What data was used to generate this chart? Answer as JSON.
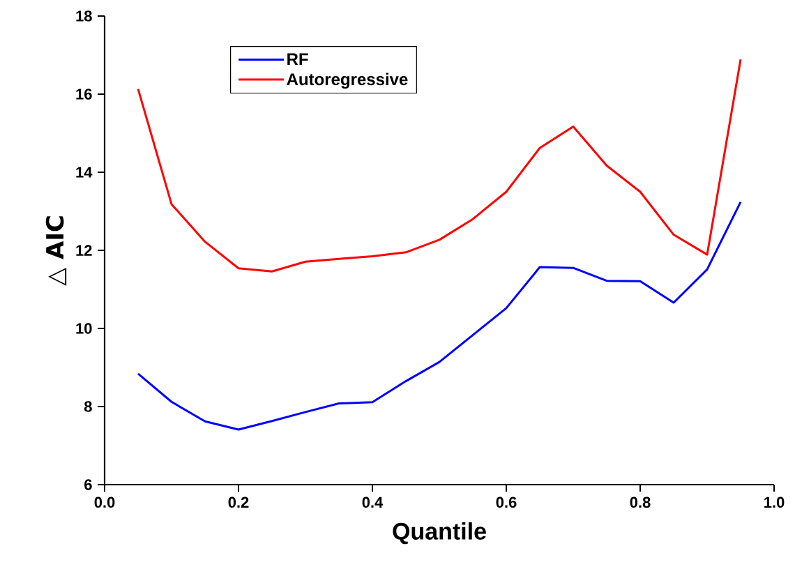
{
  "chart_data": {
    "type": "line",
    "xlabel": "Quantile",
    "ylabel": "△ AIC",
    "x": [
      0.05,
      0.1,
      0.15,
      0.2,
      0.25,
      0.3,
      0.35,
      0.4,
      0.45,
      0.5,
      0.55,
      0.6,
      0.65,
      0.7,
      0.75,
      0.8,
      0.85,
      0.9,
      0.95
    ],
    "series": [
      {
        "name": "RF",
        "color": "#0000ff",
        "values": [
          8.84,
          8.12,
          7.62,
          7.41,
          7.63,
          7.86,
          8.08,
          8.11,
          8.65,
          9.14,
          9.83,
          10.52,
          11.57,
          11.55,
          11.22,
          11.21,
          10.66,
          11.51,
          13.24
        ]
      },
      {
        "name": "Autoregressive",
        "color": "#ff0000",
        "values": [
          16.13,
          13.18,
          12.22,
          11.54,
          11.46,
          11.71,
          11.78,
          11.85,
          11.95,
          12.27,
          12.8,
          13.5,
          14.62,
          15.17,
          14.17,
          13.5,
          12.4,
          11.89,
          16.89
        ]
      }
    ],
    "xlim": [
      0,
      1
    ],
    "ylim": [
      6,
      18
    ],
    "xticks": [
      {
        "value": 0,
        "label": "0.0"
      },
      {
        "value": 0.2,
        "label": "0.2"
      },
      {
        "value": 0.4,
        "label": "0.4"
      },
      {
        "value": 0.6,
        "label": "0.6"
      },
      {
        "value": 0.8,
        "label": "0.8"
      },
      {
        "value": 1,
        "label": "1.0"
      }
    ],
    "yticks": [
      6,
      8,
      10,
      12,
      14,
      16,
      18
    ],
    "legend": "top left",
    "grid": false,
    "marker": "none",
    "line_style": "solid"
  }
}
